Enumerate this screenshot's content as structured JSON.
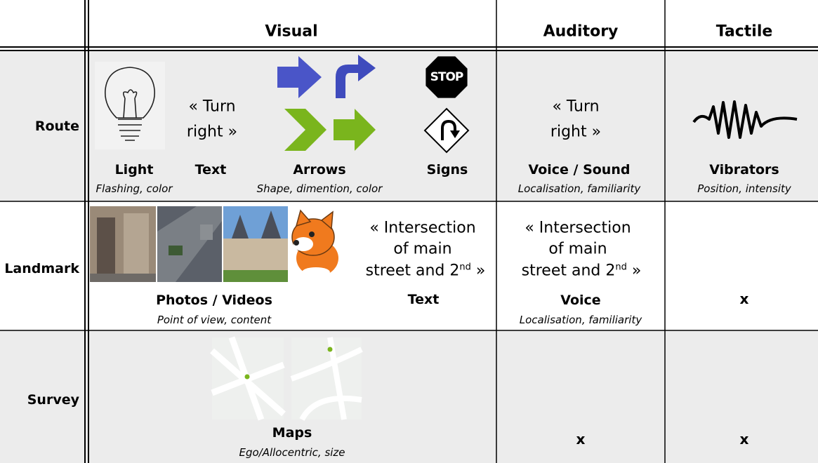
{
  "header": {
    "columns": [
      "Visual",
      "Auditory",
      "Tactile"
    ]
  },
  "rows": [
    {
      "label": "Route",
      "visual": {
        "items": [
          {
            "name": "Light",
            "attributes": "Flashing, color"
          },
          {
            "name": "Text",
            "quote": [
              "« Turn",
              "right »"
            ]
          },
          {
            "name": "Arrows",
            "attributes": "Shape, dimention, color"
          },
          {
            "name": "Signs",
            "sign_text": "STOP"
          }
        ]
      },
      "auditory": {
        "quote": [
          "« Turn",
          "right »"
        ],
        "name": "Voice / Sound",
        "attributes": "Localisation, familiarity"
      },
      "tactile": {
        "name": "Vibrators",
        "attributes": "Position, intensity"
      }
    },
    {
      "label": "Landmark",
      "visual": {
        "photos": {
          "name": "Photos / Videos",
          "attributes": "Point of view, content"
        },
        "text": {
          "name": "Text",
          "quote": [
            "« Intersection",
            "of main",
            "street and 2"
          ],
          "superscript": "nd",
          "closing": "»"
        }
      },
      "auditory": {
        "quote": [
          "« Intersection",
          "of main",
          "street and 2"
        ],
        "superscript": "nd",
        "closing": "»",
        "name": "Voice",
        "attributes": "Localisation, familiarity"
      },
      "tactile": {
        "mark": "x"
      }
    },
    {
      "label": "Survey",
      "visual": {
        "name": "Maps",
        "attributes": "Ego/Allocentric, size"
      },
      "auditory": {
        "mark": "x"
      },
      "tactile": {
        "mark": "x"
      }
    }
  ]
}
